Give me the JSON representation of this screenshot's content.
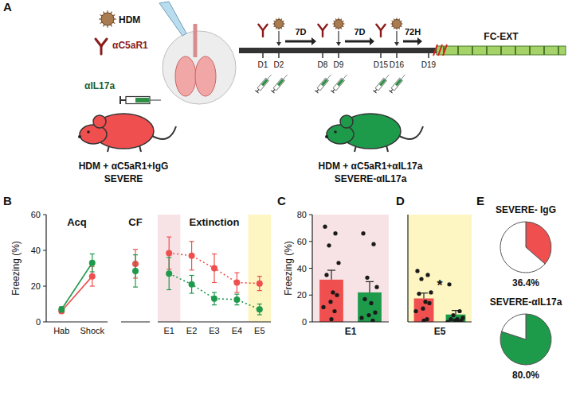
{
  "panel_letters": [
    "A",
    "B",
    "C",
    "D",
    "E"
  ],
  "panel_a": {
    "hdm": "HDM",
    "anti_c5ar1": "αC5aR1",
    "anti_il17a": "αIL17a",
    "days": [
      "D1",
      "D2",
      "D8",
      "D9",
      "D15",
      "D16",
      "D19"
    ],
    "intervals": [
      "7D",
      "7D",
      "72H"
    ],
    "phase": "FC-EXT",
    "groups": [
      {
        "treatment": "HDM + αC5aR1+IgG",
        "name": "SEVERE",
        "color": "#ef4f4f"
      },
      {
        "treatment": "HDM + αC5aR1+αIL17a",
        "name": "SEVERE-αIL17a",
        "color": "#1e9a4b"
      }
    ]
  },
  "chart_data": [
    {
      "type": "line",
      "ylabel": "Freezing (%)",
      "groups": [
        {
          "label": "Acq",
          "categories": [
            "Hab",
            "Shock"
          ]
        },
        {
          "label": "CF",
          "categories": [
            null
          ]
        },
        {
          "label": "Extinction",
          "categories": [
            "E1",
            "E2",
            "E3",
            "E4",
            "E5"
          ]
        }
      ],
      "series": [
        {
          "color": "#ef4f4f",
          "marker": "circle",
          "values": [
            6,
            25.5,
            32.5,
            38.5,
            37,
            30,
            22,
            21.5
          ],
          "errors": [
            1,
            5.5,
            8,
            9,
            8,
            8,
            5.5,
            4
          ]
        },
        {
          "color": "#1e9a4b",
          "marker": "circle",
          "values": [
            7,
            33,
            28.5,
            27,
            21,
            13,
            12.5,
            7
          ],
          "errors": [
            1.5,
            5,
            9,
            9,
            5,
            3.5,
            3,
            3
          ]
        }
      ],
      "ylim": [
        0,
        60
      ],
      "yticks": [
        0,
        20,
        40,
        60
      ]
    },
    {
      "type": "bar",
      "title": "E1",
      "ylabel": "Freezing (%)",
      "categories": [
        null,
        null
      ],
      "values": [
        31.5,
        22
      ],
      "errors": [
        7,
        8
      ],
      "colors": [
        "#ef4f4f",
        "#1e9a4b"
      ],
      "points": [
        [
          71,
          66,
          57,
          44,
          35,
          22,
          20,
          15,
          11,
          8,
          2
        ],
        [
          66,
          58,
          33,
          26,
          17,
          14,
          7,
          5,
          3,
          1
        ]
      ],
      "ylim": [
        0,
        80
      ],
      "yticks": [
        0,
        20,
        40,
        60,
        80
      ]
    },
    {
      "type": "bar",
      "title": "E5",
      "categories": [
        null,
        null
      ],
      "values": [
        17.5,
        5.5
      ],
      "errors": [
        4,
        3
      ],
      "colors": [
        "#ef4f4f",
        "#1e9a4b"
      ],
      "points": [
        [
          38,
          35,
          32,
          22,
          21,
          15,
          14,
          10,
          8,
          2,
          1
        ],
        [
          28,
          8,
          5,
          3,
          2,
          2,
          1,
          1,
          0,
          0
        ]
      ],
      "ylim": [
        0,
        80
      ],
      "tick_labels": false,
      "annotations": [
        "*"
      ]
    },
    {
      "type": "pie",
      "title": "SEVERE- IgG",
      "values": [
        36.4,
        63.6
      ],
      "colors": [
        "#ef4f4f",
        "#ffffff"
      ],
      "value_labels": [
        "36.4%",
        null
      ]
    },
    {
      "type": "pie",
      "title": "SEVERE-αIL17a",
      "values": [
        80.0,
        20.0
      ],
      "colors": [
        "#1e9a4b",
        "#ffffff"
      ],
      "value_labels": [
        "80.0%",
        null
      ]
    }
  ]
}
